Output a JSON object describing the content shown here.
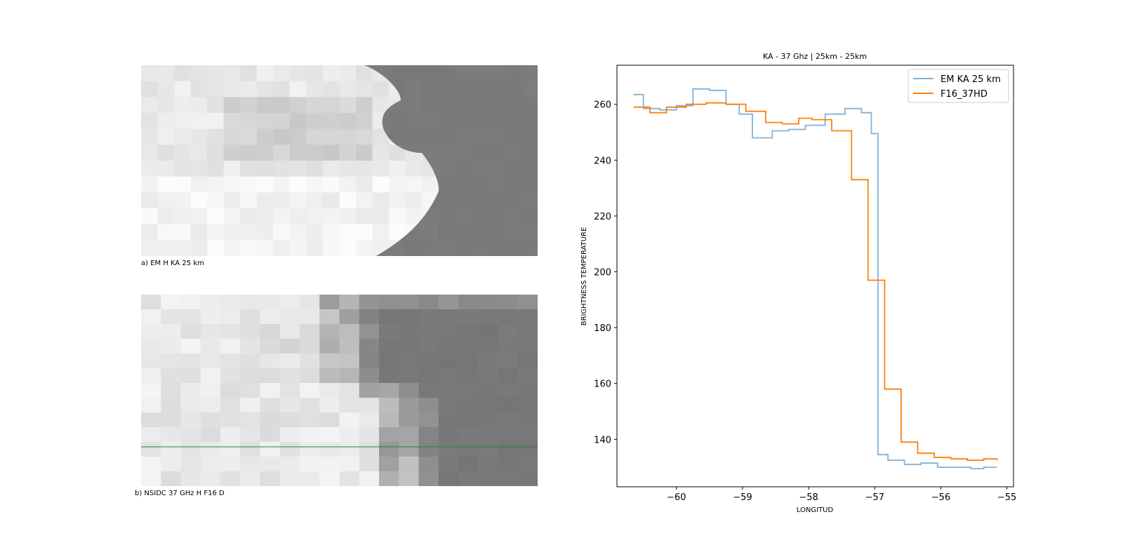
{
  "panels": {
    "a": {
      "caption": "a) EM H KA 25 km"
    },
    "b": {
      "caption": "b) NSIDC 37 GHz H F16 D"
    }
  },
  "chart_data": {
    "type": "line",
    "title": "KA - 37 Ghz | 25km - 25km",
    "xlabel": "LONGITUD",
    "ylabel": "BRIGHTNESS TEMPERATURE",
    "xlim": [
      -60.9,
      -54.9
    ],
    "ylim": [
      123,
      274
    ],
    "xticks": [
      -60,
      -59,
      -58,
      -57,
      -56,
      -55
    ],
    "yticks": [
      140,
      160,
      180,
      200,
      220,
      240,
      260
    ],
    "xtick_labels": [
      "−60",
      "−59",
      "−58",
      "−57",
      "−56",
      "−55"
    ],
    "ytick_labels": [
      "140",
      "160",
      "180",
      "200",
      "220",
      "240",
      "260"
    ],
    "legend_position": "top-right",
    "grid": false,
    "step": "post",
    "series": [
      {
        "name": "EM KA 25 km",
        "color": "#7fb2da",
        "x": [
          -60.65,
          -60.5,
          -60.25,
          -60.0,
          -59.75,
          -59.5,
          -59.25,
          -59.05,
          -58.85,
          -58.55,
          -58.3,
          -58.05,
          -57.75,
          -57.45,
          -57.2,
          -57.05,
          -56.95,
          -56.8,
          -56.55,
          -56.3,
          -56.05,
          -55.8,
          -55.55,
          -55.35,
          -55.15
        ],
        "y": [
          263.5,
          258.5,
          258,
          259.5,
          265.5,
          265,
          260,
          256.5,
          248,
          250.5,
          251,
          252.5,
          256.5,
          258.5,
          257,
          249.5,
          134.5,
          132.5,
          131,
          131.5,
          130,
          130,
          129.5,
          130,
          130
        ]
      },
      {
        "name": "F16_37HD",
        "color": "#ff7f0e",
        "x": [
          -60.65,
          -60.4,
          -60.15,
          -59.85,
          -59.55,
          -59.25,
          -58.95,
          -58.65,
          -58.4,
          -58.15,
          -57.95,
          -57.65,
          -57.35,
          -57.1,
          -56.85,
          -56.6,
          -56.35,
          -56.1,
          -55.85,
          -55.6,
          -55.35,
          -55.15
        ],
        "y": [
          259,
          257,
          259,
          260,
          260.5,
          260,
          257.5,
          253.5,
          253,
          255,
          254.5,
          250.5,
          233,
          197,
          158,
          139,
          135,
          133.5,
          133,
          132.5,
          133,
          132.5
        ]
      }
    ]
  }
}
